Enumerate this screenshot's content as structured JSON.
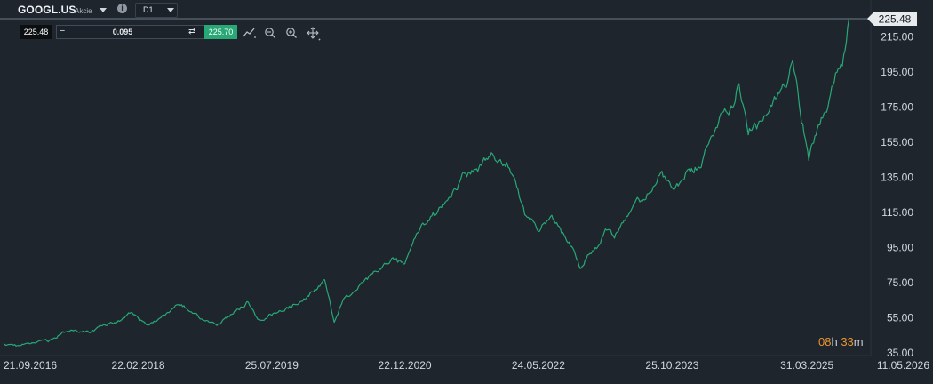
{
  "header": {
    "symbol": "GOOGL.US",
    "instrument_type": "Akcie",
    "info_icon": "i",
    "timeframe": "D1"
  },
  "trade_panel": {
    "sell_price": "225.48",
    "minus_label": "−",
    "volume": "0.095",
    "swap_icon": "⇄",
    "plus_label": "+",
    "buy_price": "225.70"
  },
  "toolbar_icons": [
    "line-drawing-icon",
    "zoom-out-icon",
    "zoom-in-icon",
    "move-icon"
  ],
  "countdown": {
    "hours": "08",
    "hours_unit": "h",
    "minutes": "33",
    "minutes_unit": "m"
  },
  "colors": {
    "background": "#1e252d",
    "series": "#28a876",
    "current_price_label": "#e8ebee",
    "buy": "#28a876",
    "countdown": "#e8942c"
  },
  "chart_data": {
    "type": "line",
    "title": "",
    "xlabel": "",
    "ylabel": "",
    "grid": false,
    "ylim": [
      35,
      225.48
    ],
    "xlim": [
      "2016-09-21",
      "2026-05-11"
    ],
    "y_tick_labels": [
      "35.00",
      "55.00",
      "75.00",
      "95.00",
      "115.00",
      "135.00",
      "155.00",
      "175.00",
      "195.00",
      "215.00"
    ],
    "x_tick_labels": [
      "21.09.2016",
      "22.02.2018",
      "25.07.2019",
      "22.12.2020",
      "24.05.2022",
      "25.10.2023",
      "31.03.2025",
      "11.05.2026"
    ],
    "current_price": "225.48",
    "series": [
      {
        "points": [
          [
            "2016-09-21",
            40
          ],
          [
            "2016-11-15",
            39
          ],
          [
            "2017-01-15",
            41
          ],
          [
            "2017-03-15",
            42
          ],
          [
            "2017-05-15",
            47
          ],
          [
            "2017-06-15",
            48
          ],
          [
            "2017-08-15",
            47
          ],
          [
            "2017-10-01",
            50
          ],
          [
            "2017-12-01",
            52
          ],
          [
            "2018-01-25",
            58
          ],
          [
            "2018-02-22",
            54
          ],
          [
            "2018-04-01",
            51
          ],
          [
            "2018-06-01",
            56
          ],
          [
            "2018-07-26",
            63
          ],
          [
            "2018-09-01",
            60
          ],
          [
            "2018-10-20",
            55
          ],
          [
            "2018-12-24",
            51
          ],
          [
            "2019-02-01",
            55
          ],
          [
            "2019-04-25",
            64
          ],
          [
            "2019-06-01",
            53
          ],
          [
            "2019-07-25",
            57
          ],
          [
            "2019-10-01",
            61
          ],
          [
            "2019-12-01",
            66
          ],
          [
            "2020-02-15",
            76
          ],
          [
            "2020-03-23",
            53
          ],
          [
            "2020-05-01",
            66
          ],
          [
            "2020-07-01",
            73
          ],
          [
            "2020-09-01",
            81
          ],
          [
            "2020-11-01",
            88
          ],
          [
            "2020-12-22",
            86
          ],
          [
            "2021-02-05",
            103
          ],
          [
            "2021-04-01",
            112
          ],
          [
            "2021-06-01",
            120
          ],
          [
            "2021-08-01",
            135
          ],
          [
            "2021-10-01",
            140
          ],
          [
            "2021-11-18",
            148
          ],
          [
            "2022-01-01",
            145
          ],
          [
            "2022-02-01",
            142
          ],
          [
            "2022-03-01",
            132
          ],
          [
            "2022-04-01",
            114
          ],
          [
            "2022-05-24",
            105
          ],
          [
            "2022-07-15",
            112
          ],
          [
            "2022-09-15",
            100
          ],
          [
            "2022-11-03",
            84
          ],
          [
            "2022-12-15",
            93
          ],
          [
            "2023-01-15",
            96
          ],
          [
            "2023-02-08",
            108
          ],
          [
            "2023-03-15",
            102
          ],
          [
            "2023-05-15",
            117
          ],
          [
            "2023-07-15",
            125
          ],
          [
            "2023-09-15",
            138
          ],
          [
            "2023-10-25",
            127
          ],
          [
            "2023-12-15",
            136
          ],
          [
            "2024-02-15",
            142
          ],
          [
            "2024-04-26",
            170
          ],
          [
            "2024-06-15",
            176
          ],
          [
            "2024-07-10",
            190
          ],
          [
            "2024-08-15",
            162
          ],
          [
            "2024-10-01",
            165
          ],
          [
            "2024-11-15",
            175
          ],
          [
            "2025-01-15",
            192
          ],
          [
            "2025-02-04",
            205
          ],
          [
            "2025-03-10",
            170
          ],
          [
            "2025-04-07",
            145
          ],
          [
            "2025-05-15",
            166
          ],
          [
            "2025-06-15",
            173
          ],
          [
            "2025-07-20",
            192
          ],
          [
            "2025-08-15",
            200
          ],
          [
            "2025-09-10",
            225.48
          ]
        ]
      }
    ]
  }
}
